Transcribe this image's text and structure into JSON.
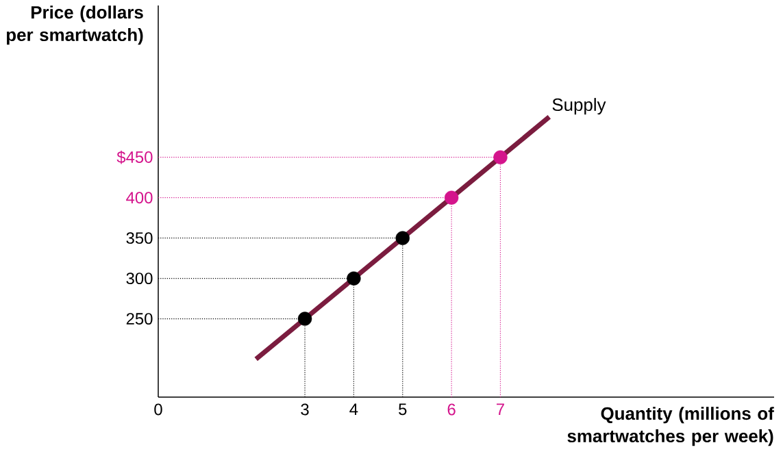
{
  "chart_data": {
    "type": "scatter",
    "xlabel": "Quantity (millions of smartwatches per week)",
    "ylabel": "Price (dollars per smartwatch)",
    "xlim": [
      0,
      12.6
    ],
    "ylim": [
      153,
      638
    ],
    "xticks": [
      0,
      3,
      4,
      5,
      6,
      7
    ],
    "yticks": [
      250,
      300,
      350,
      400,
      {
        "value": 450,
        "label": "$450"
      }
    ],
    "series": [
      {
        "name": "Supply",
        "type": "line",
        "color": "#7b1c3f",
        "x": [
          2,
          8
        ],
        "values": [
          200,
          500
        ],
        "marker": "none",
        "line_style": "solid"
      },
      {
        "color": "#000000",
        "x": [
          3,
          4,
          5
        ],
        "values": [
          250,
          300,
          350
        ],
        "marker": "circle"
      },
      {
        "color": "#d4148c",
        "x": [
          6,
          7
        ],
        "values": [
          400,
          450
        ],
        "marker": "circle"
      }
    ],
    "ref_lines": [
      {
        "axis": "x",
        "value": 3,
        "color": "#000000",
        "line_style": "dotted"
      },
      {
        "axis": "x",
        "value": 4,
        "color": "#000000",
        "line_style": "dotted"
      },
      {
        "axis": "x",
        "value": 5,
        "color": "#000000",
        "line_style": "dotted"
      },
      {
        "axis": "x",
        "value": 6,
        "color": "#d4148c",
        "line_style": "dotted"
      },
      {
        "axis": "x",
        "value": 7,
        "color": "#d4148c",
        "line_style": "dotted"
      },
      {
        "axis": "y",
        "value": 250,
        "color": "#000000",
        "line_style": "dotted"
      },
      {
        "axis": "y",
        "value": 300,
        "color": "#000000",
        "line_style": "dotted"
      },
      {
        "axis": "y",
        "value": 350,
        "color": "#000000",
        "line_style": "dotted"
      },
      {
        "axis": "y",
        "value": 400,
        "color": "#d4148c",
        "line_style": "dotted"
      },
      {
        "axis": "y",
        "value": 450,
        "color": "#d4148c",
        "line_style": "dotted"
      }
    ]
  }
}
